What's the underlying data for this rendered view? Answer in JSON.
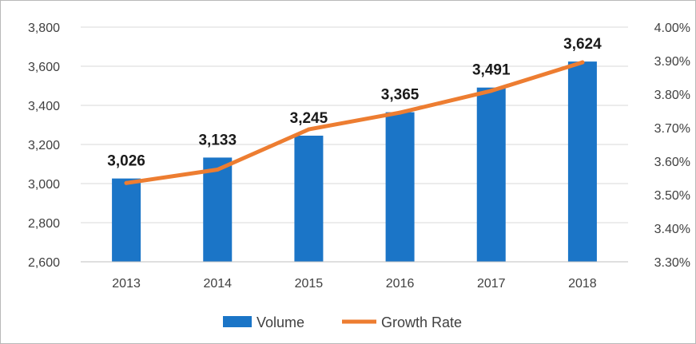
{
  "chart_data": {
    "type": "bar",
    "categories": [
      "2013",
      "2014",
      "2015",
      "2016",
      "2017",
      "2018"
    ],
    "series": [
      {
        "name": "Volume",
        "type": "bar",
        "axis": "left",
        "color": "#1b75c7",
        "values": [
          3026,
          3133,
          3245,
          3365,
          3491,
          3624
        ],
        "data_labels": [
          "3,026",
          "3,133",
          "3,245",
          "3,365",
          "3,491",
          "3,624"
        ]
      },
      {
        "name": "Growth Rate",
        "type": "line",
        "axis": "right",
        "color": "#ed7d31",
        "values": [
          3.535,
          3.575,
          3.695,
          3.745,
          3.81,
          3.895
        ],
        "unit": "%"
      }
    ],
    "y_left": {
      "ylim": [
        2600,
        3800
      ],
      "ticks": [
        2600,
        2800,
        3000,
        3200,
        3400,
        3600,
        3800
      ],
      "tick_labels": [
        "2,600",
        "2,800",
        "3,000",
        "3,200",
        "3,400",
        "3,600",
        "3,800"
      ]
    },
    "y_right": {
      "ylim": [
        3.3,
        4.0
      ],
      "ticks": [
        3.3,
        3.4,
        3.5,
        3.6,
        3.7,
        3.8,
        3.9,
        4.0
      ],
      "tick_labels": [
        "3.30%",
        "3.40%",
        "3.50%",
        "3.60%",
        "3.70%",
        "3.80%",
        "3.90%",
        "4.00%"
      ]
    },
    "grid": true,
    "legend": {
      "position": "bottom",
      "entries": [
        "Volume",
        "Growth Rate"
      ]
    },
    "title": "",
    "xlabel": "",
    "ylabel": ""
  }
}
